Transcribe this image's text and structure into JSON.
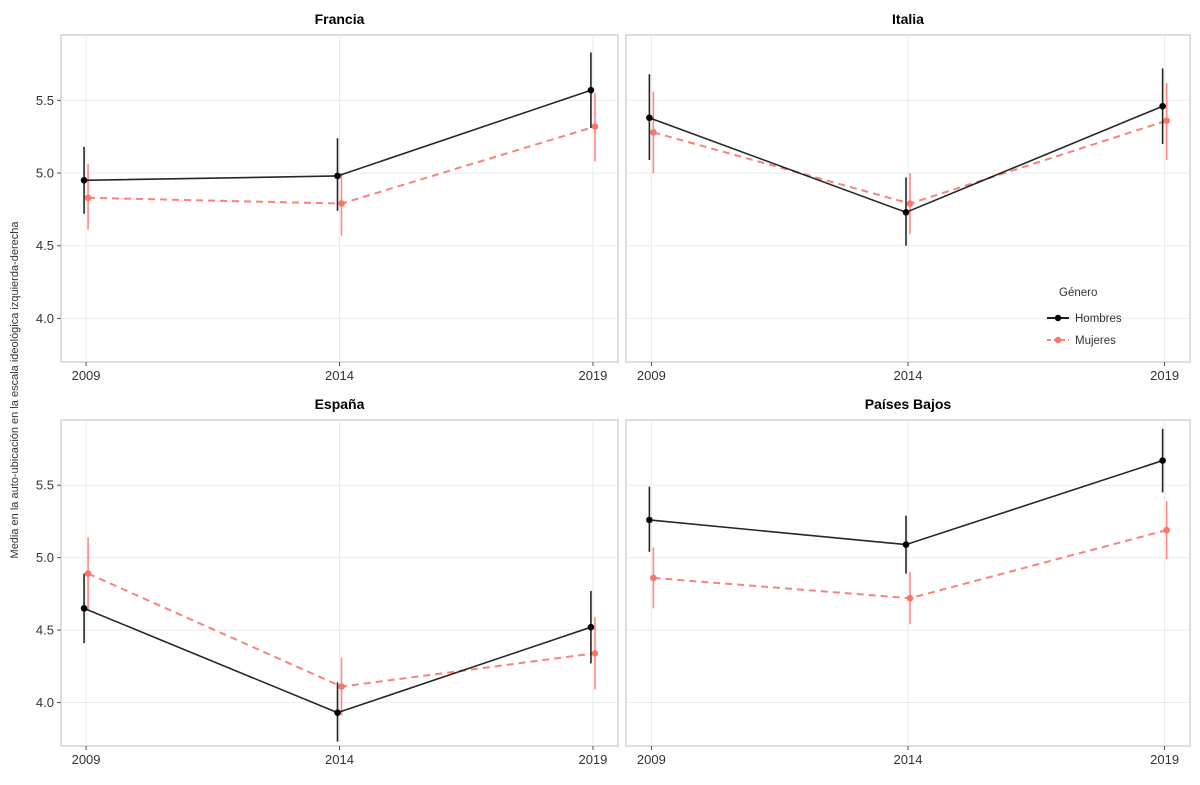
{
  "chart_data": {
    "type": "line",
    "ylabel": "Media en la auto-ubicación en la escala ideológica izquierda-derecha",
    "x": [
      "2009",
      "2014",
      "2019"
    ],
    "ylim": [
      3.7,
      5.95
    ],
    "yticks": [
      "4.0",
      "4.5",
      "5.0",
      "5.5"
    ],
    "grid": true,
    "legend": {
      "title": "Género",
      "position": "inside-right",
      "items": [
        {
          "name": "Hombres",
          "color": "#000000",
          "dash": "solid"
        },
        {
          "name": "Mujeres",
          "color": "#f8766d",
          "dash": "dashed"
        }
      ]
    },
    "panels": [
      {
        "title": "Francia",
        "series": [
          {
            "name": "Hombres",
            "values": [
              4.95,
              4.98,
              5.57
            ],
            "lower": [
              4.72,
              4.74,
              5.31
            ],
            "upper": [
              5.18,
              5.24,
              5.83
            ]
          },
          {
            "name": "Mujeres",
            "values": [
              4.83,
              4.79,
              5.32
            ],
            "lower": [
              4.61,
              4.57,
              5.08
            ],
            "upper": [
              5.06,
              5.0,
              5.55
            ]
          }
        ]
      },
      {
        "title": "Italia",
        "series": [
          {
            "name": "Hombres",
            "values": [
              5.38,
              4.73,
              5.46
            ],
            "lower": [
              5.09,
              4.5,
              5.2
            ],
            "upper": [
              5.68,
              4.97,
              5.72
            ]
          },
          {
            "name": "Mujeres",
            "values": [
              5.28,
              4.79,
              5.36
            ],
            "lower": [
              5.0,
              4.58,
              5.09
            ],
            "upper": [
              5.56,
              5.0,
              5.62
            ]
          }
        ]
      },
      {
        "title": "España",
        "series": [
          {
            "name": "Hombres",
            "values": [
              4.65,
              3.93,
              4.52
            ],
            "lower": [
              4.41,
              3.73,
              4.27
            ],
            "upper": [
              4.89,
              4.14,
              4.77
            ]
          },
          {
            "name": "Mujeres",
            "values": [
              4.89,
              4.11,
              4.34
            ],
            "lower": [
              4.64,
              3.91,
              4.09
            ],
            "upper": [
              5.14,
              4.31,
              4.59
            ]
          }
        ]
      },
      {
        "title": "Países Bajos",
        "series": [
          {
            "name": "Hombres",
            "values": [
              5.26,
              5.09,
              5.67
            ],
            "lower": [
              5.04,
              4.89,
              5.45
            ],
            "upper": [
              5.49,
              5.29,
              5.89
            ]
          },
          {
            "name": "Mujeres",
            "values": [
              4.86,
              4.72,
              5.19
            ],
            "lower": [
              4.65,
              4.54,
              4.99
            ],
            "upper": [
              5.07,
              4.9,
              5.39
            ]
          }
        ]
      }
    ]
  }
}
